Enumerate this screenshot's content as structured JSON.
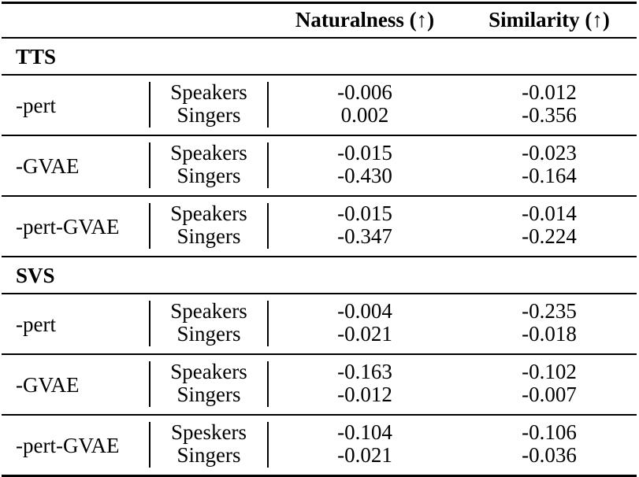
{
  "header": {
    "columns": [
      "Naturalness (↑)",
      "Similarity (↑)"
    ]
  },
  "sections": [
    {
      "title": "TTS",
      "rows": [
        {
          "label": "-pert",
          "entries": [
            {
              "group": "Speakers",
              "naturalness": "-0.006",
              "similarity": "-0.012"
            },
            {
              "group": "Singers",
              "naturalness": "0.002",
              "similarity": "-0.356"
            }
          ]
        },
        {
          "label": "-GVAE",
          "entries": [
            {
              "group": "Speakers",
              "naturalness": "-0.015",
              "similarity": "-0.023"
            },
            {
              "group": "Singers",
              "naturalness": "-0.430",
              "similarity": "-0.164"
            }
          ]
        },
        {
          "label": "-pert-GVAE",
          "entries": [
            {
              "group": "Speakers",
              "naturalness": "-0.015",
              "similarity": "-0.014"
            },
            {
              "group": "Singers",
              "naturalness": "-0.347",
              "similarity": "-0.224"
            }
          ]
        }
      ]
    },
    {
      "title": "SVS",
      "rows": [
        {
          "label": "-pert",
          "entries": [
            {
              "group": "Speakers",
              "naturalness": "-0.004",
              "similarity": "-0.235"
            },
            {
              "group": "Singers",
              "naturalness": "-0.021",
              "similarity": "-0.018"
            }
          ]
        },
        {
          "label": "-GVAE",
          "entries": [
            {
              "group": "Speakers",
              "naturalness": "-0.163",
              "similarity": "-0.102"
            },
            {
              "group": "Singers",
              "naturalness": "-0.012",
              "similarity": "-0.007"
            }
          ]
        },
        {
          "label": "-pert-GVAE",
          "entries": [
            {
              "group": "Speskers",
              "naturalness": "-0.104",
              "similarity": "-0.106"
            },
            {
              "group": "Singers",
              "naturalness": "-0.021",
              "similarity": "-0.036"
            }
          ]
        }
      ]
    }
  ]
}
